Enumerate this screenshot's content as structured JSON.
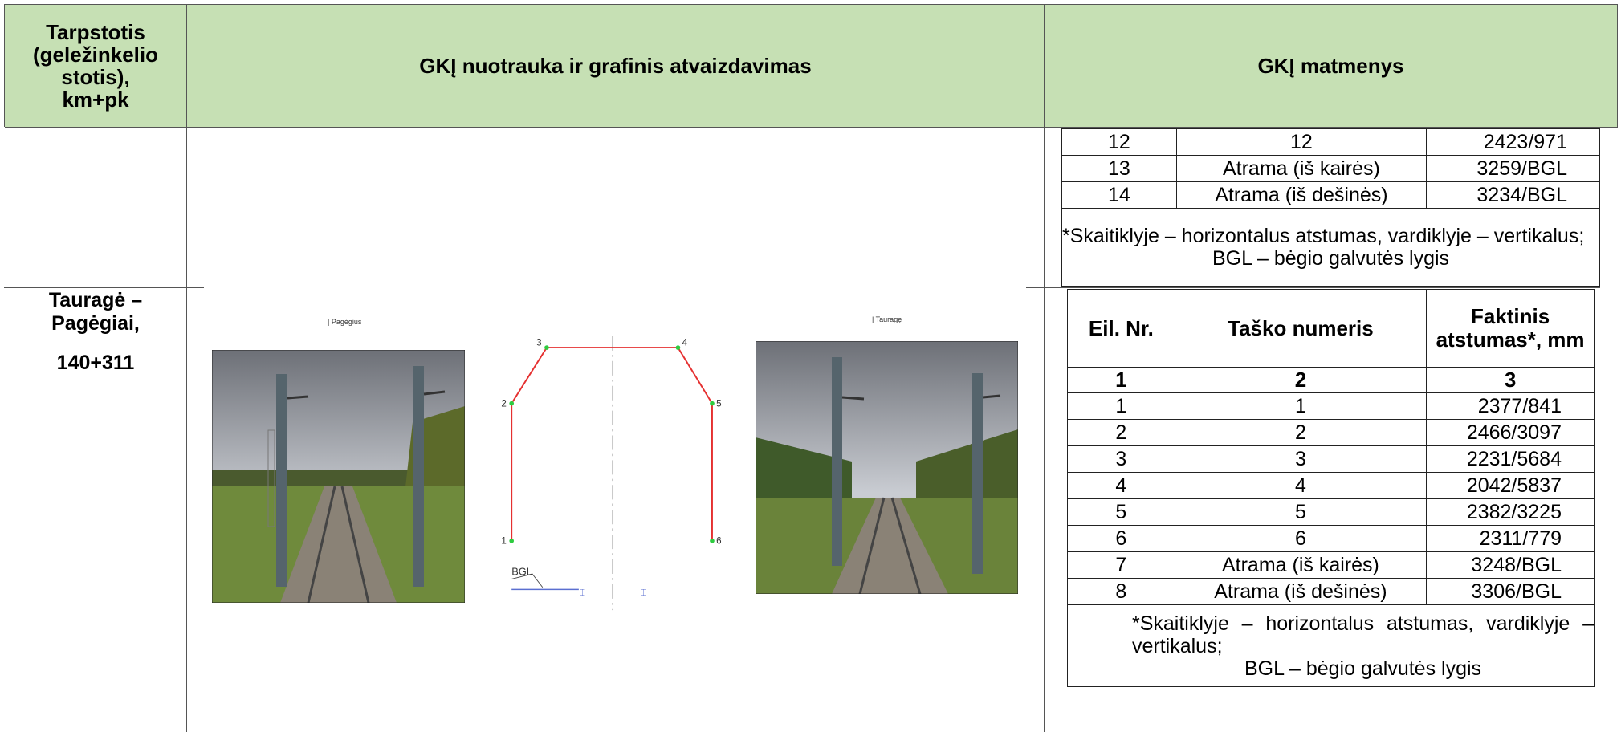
{
  "header": {
    "station_lines": [
      "Tarpstotis",
      "(geležinkelio",
      "stotis),",
      "km+pk"
    ],
    "photo": "GKĮ nuotrauka ir grafinis atvaizdavimas",
    "dimensions": "GKĮ matmenys"
  },
  "station": {
    "lines": [
      "Tauragė –",
      "Pagėgiai,"
    ],
    "km": "140+311"
  },
  "images": {
    "left_caption": "| Pagėgius",
    "right_caption": "| Tauragę"
  },
  "diagram": {
    "points": [
      "1",
      "2",
      "3",
      "4",
      "5",
      "6"
    ],
    "level": "BGL"
  },
  "top_table": {
    "rows": [
      [
        "12",
        "12",
        "2423/971"
      ],
      [
        "13",
        "Atrama (iš kairės)",
        "3259/BGL"
      ],
      [
        "14",
        "Atrama (iš dešinės)",
        "3234/BGL"
      ]
    ],
    "note": [
      "*Skaitiklyje – horizontalus atstumas, vardiklyje – vertikalus;",
      "BGL – bėgio galvutės lygis"
    ]
  },
  "table": {
    "columns": [
      "Eil. Nr.",
      "Taško numeris",
      "Faktinis atstumas*, mm"
    ],
    "numbers": [
      "1",
      "2",
      "3"
    ],
    "rows": [
      [
        "1",
        "1",
        "2377/841"
      ],
      [
        "2",
        "2",
        "2466/3097"
      ],
      [
        "3",
        "3",
        "2231/5684"
      ],
      [
        "4",
        "4",
        "2042/5837"
      ],
      [
        "5",
        "5",
        "2382/3225"
      ],
      [
        "6",
        "6",
        "2311/779"
      ],
      [
        "7",
        "Atrama (iš kairės)",
        "3248/BGL"
      ],
      [
        "8",
        "Atrama (iš dešinės)",
        "3306/BGL"
      ]
    ],
    "note": [
      "*Skaitiklyje – horizontalus atstumas, vardiklyje – vertikalus;",
      "BGL – bėgio galvutės lygis"
    ]
  }
}
